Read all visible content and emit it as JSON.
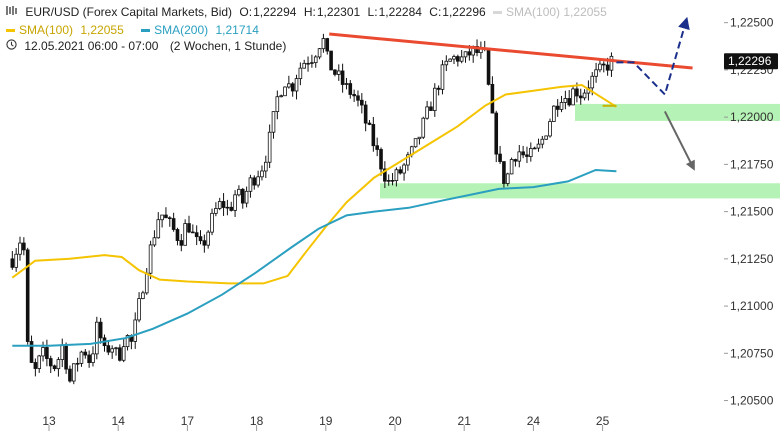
{
  "header": {
    "symbol": "EUR/USD (Forex Capital Markets, Bid)",
    "o_label": "O:",
    "o_value": "1,22294",
    "h_label": "H:",
    "h_value": "1,22301",
    "l_label": "L:",
    "l_value": "1,22284",
    "c_label": "C:",
    "c_value": "1,22296",
    "sma100_ghost": "SMA(100)  1,22055",
    "sma100_label": "SMA(100)",
    "sma100_value": "1,22055",
    "sma200_label": "SMA(200)",
    "sma200_value": "1,21714",
    "timestamp": "12.05.2021 06:00 - 07:00",
    "range": "(2 Wochen, 1 Stunde)",
    "chart_icon": "candlestick-icon",
    "clock_icon": "clock-icon"
  },
  "colors": {
    "sma100": "#f5c400",
    "sma200": "#2a9fc0",
    "resistance": "#ea4a30",
    "zone": "#a8f0a8",
    "projection": "#1a2f8c",
    "arrow_down": "#666666",
    "candle": "#111111",
    "pricetag": "#111111",
    "support_tick": "#c8b400"
  },
  "chart_data": {
    "type": "candlestick",
    "y_axis_side": "right",
    "ylim": [
      1.2045,
      1.2262
    ],
    "yticks": [
      "1,20500",
      "1,20750",
      "1,21000",
      "1,21250",
      "1,21500",
      "1,21750",
      "1,22000",
      "1,22250",
      "1,22500"
    ],
    "ytick_values": [
      1.205,
      1.2075,
      1.21,
      1.2125,
      1.215,
      1.2175,
      1.22,
      1.2225,
      1.225
    ],
    "xticks": [
      "13",
      "14",
      "17",
      "18",
      "19",
      "20",
      "21",
      "24",
      "25"
    ],
    "xtick_index": [
      0,
      1,
      2,
      3,
      4,
      5,
      6,
      7,
      8
    ],
    "session_count": 8.8,
    "last_price": "1,22296",
    "last_price_value": 1.22296,
    "price_path": [
      [
        -0.53,
        1.2125
      ],
      [
        -0.42,
        1.2135
      ],
      [
        -0.35,
        1.2128
      ],
      [
        -0.33,
        1.2085
      ],
      [
        -0.28,
        1.207
      ],
      [
        -0.2,
        1.2065
      ],
      [
        -0.1,
        1.2075
      ],
      [
        0.0,
        1.207
      ],
      [
        0.1,
        1.2068
      ],
      [
        0.2,
        1.208
      ],
      [
        0.3,
        1.206
      ],
      [
        0.4,
        1.207
      ],
      [
        0.5,
        1.2078
      ],
      [
        0.6,
        1.207
      ],
      [
        0.7,
        1.209
      ],
      [
        0.8,
        1.2075
      ],
      [
        0.9,
        1.208
      ],
      [
        1.0,
        1.2072
      ],
      [
        1.1,
        1.2085
      ],
      [
        1.2,
        1.208
      ],
      [
        1.3,
        1.21
      ],
      [
        1.4,
        1.212
      ],
      [
        1.5,
        1.2135
      ],
      [
        1.6,
        1.215
      ],
      [
        1.7,
        1.2145
      ],
      [
        1.8,
        1.214
      ],
      [
        1.9,
        1.2135
      ],
      [
        2.0,
        1.2145
      ],
      [
        2.1,
        1.2135
      ],
      [
        2.2,
        1.213
      ],
      [
        2.3,
        1.214
      ],
      [
        2.4,
        1.215
      ],
      [
        2.5,
        1.2155
      ],
      [
        2.6,
        1.215
      ],
      [
        2.7,
        1.216
      ],
      [
        2.8,
        1.2155
      ],
      [
        2.9,
        1.2165
      ],
      [
        3.0,
        1.217
      ],
      [
        3.1,
        1.2175
      ],
      [
        3.2,
        1.219
      ],
      [
        3.3,
        1.221
      ],
      [
        3.4,
        1.222
      ],
      [
        3.5,
        1.2215
      ],
      [
        3.6,
        1.2225
      ],
      [
        3.7,
        1.223
      ],
      [
        3.8,
        1.2232
      ],
      [
        3.9,
        1.2238
      ],
      [
        3.95,
        1.2244
      ],
      [
        4.0,
        1.2232
      ],
      [
        4.1,
        1.2225
      ],
      [
        4.2,
        1.222
      ],
      [
        4.3,
        1.2215
      ],
      [
        4.4,
        1.2212
      ],
      [
        4.5,
        1.2205
      ],
      [
        4.6,
        1.2195
      ],
      [
        4.8,
        1.2175
      ],
      [
        4.9,
        1.2165
      ],
      [
        5.0,
        1.2168
      ],
      [
        5.1,
        1.2172
      ],
      [
        5.2,
        1.2178
      ],
      [
        5.3,
        1.2185
      ],
      [
        5.4,
        1.2195
      ],
      [
        5.5,
        1.2205
      ],
      [
        5.6,
        1.2215
      ],
      [
        5.7,
        1.2225
      ],
      [
        5.8,
        1.223
      ],
      [
        5.9,
        1.2232
      ],
      [
        6.0,
        1.223
      ],
      [
        6.1,
        1.2235
      ],
      [
        6.2,
        1.2234
      ],
      [
        6.3,
        1.2232
      ],
      [
        6.4,
        1.22
      ],
      [
        6.5,
        1.2175
      ],
      [
        6.6,
        1.2165
      ],
      [
        6.7,
        1.218
      ],
      [
        6.8,
        1.2182
      ],
      [
        6.9,
        1.2178
      ],
      [
        7.0,
        1.218
      ],
      [
        7.1,
        1.2185
      ],
      [
        7.2,
        1.2195
      ],
      [
        7.3,
        1.2205
      ],
      [
        7.4,
        1.2212
      ],
      [
        7.5,
        1.221
      ],
      [
        7.6,
        1.2215
      ],
      [
        7.7,
        1.2212
      ],
      [
        7.8,
        1.2218
      ],
      [
        7.9,
        1.2222
      ],
      [
        8.0,
        1.2225
      ],
      [
        8.1,
        1.2229
      ],
      [
        8.15,
        1.22296
      ]
    ],
    "series": [
      {
        "name": "SMA(100)",
        "values": [
          [
            -0.53,
            1.2115
          ],
          [
            -0.2,
            1.2124
          ],
          [
            0.3,
            1.2125
          ],
          [
            0.8,
            1.2127
          ],
          [
            1.05,
            1.2126
          ],
          [
            1.3,
            1.2119
          ],
          [
            1.6,
            1.2114
          ],
          [
            2.0,
            1.2113
          ],
          [
            2.6,
            1.2112
          ],
          [
            3.1,
            1.2112
          ],
          [
            3.45,
            1.2116
          ],
          [
            3.7,
            1.2128
          ],
          [
            4.0,
            1.2142
          ],
          [
            4.3,
            1.2155
          ],
          [
            4.7,
            1.2168
          ],
          [
            5.1,
            1.2177
          ],
          [
            5.5,
            1.2186
          ],
          [
            5.9,
            1.2195
          ],
          [
            6.3,
            1.2206
          ],
          [
            6.6,
            1.2212
          ],
          [
            7.0,
            1.2214
          ],
          [
            7.4,
            1.2216
          ],
          [
            7.7,
            1.2217
          ],
          [
            8.2,
            1.22055
          ]
        ]
      },
      {
        "name": "SMA(200)",
        "values": [
          [
            -0.53,
            1.2079
          ],
          [
            0.0,
            1.2079
          ],
          [
            0.6,
            1.208
          ],
          [
            1.1,
            1.2083
          ],
          [
            1.5,
            1.2088
          ],
          [
            2.0,
            1.2096
          ],
          [
            2.5,
            1.2106
          ],
          [
            3.0,
            1.2118
          ],
          [
            3.5,
            1.2131
          ],
          [
            3.9,
            1.2141
          ],
          [
            4.3,
            1.2148
          ],
          [
            4.7,
            1.215
          ],
          [
            5.2,
            1.2152
          ],
          [
            5.7,
            1.2156
          ],
          [
            6.1,
            1.2159
          ],
          [
            6.5,
            1.2162
          ],
          [
            7.0,
            1.2163
          ],
          [
            7.5,
            1.2166
          ],
          [
            7.9,
            1.2172
          ],
          [
            8.2,
            1.21714
          ]
        ]
      }
    ],
    "annotations": {
      "resistance_line": [
        [
          4.05,
          1.2244
        ],
        [
          9.3,
          1.2226
        ]
      ],
      "support_zone_upper": [
        1.2198,
        1.2207
      ],
      "support_zone_lower": [
        1.2157,
        1.2165
      ],
      "projection_path": [
        [
          8.2,
          1.2229
        ],
        [
          8.45,
          1.2229
        ],
        [
          8.9,
          1.2212
        ],
        [
          9.2,
          1.225
        ]
      ],
      "down_arrow": [
        [
          8.9,
          1.2203
        ],
        [
          9.3,
          1.2174
        ]
      ],
      "yellow_segment": [
        [
          8.0,
          1.2206
        ],
        [
          8.2,
          1.2206
        ]
      ]
    }
  }
}
